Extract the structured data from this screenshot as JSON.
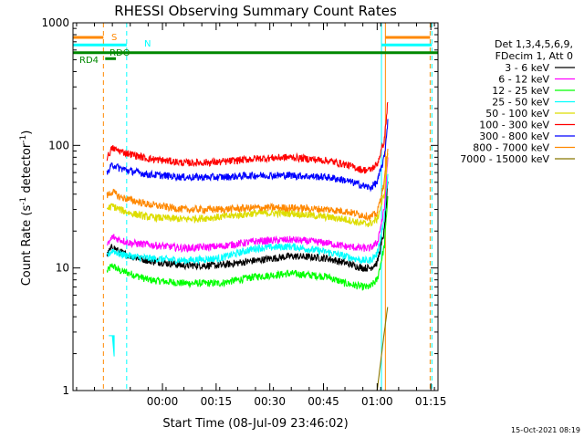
{
  "chart_data": {
    "type": "line",
    "title": "RHESSI Observing Summary Count Rates",
    "xlabel": "Start Time (08-Jul-09 23:46:02)",
    "ylabel": {
      "main": "Count Rate (s",
      "sup1": "-1",
      "mid": " detector",
      "sup2": "-1",
      "end": ")"
    },
    "yscale": "log",
    "ylim": [
      1,
      1000
    ],
    "xlim_minutes": [
      -11,
      91
    ],
    "x_ticks": [
      {
        "value": 14,
        "label": "00:00"
      },
      {
        "value": 29,
        "label": "00:15"
      },
      {
        "value": 44,
        "label": "00:30"
      },
      {
        "value": 59,
        "label": "00:45"
      },
      {
        "value": 74,
        "label": "01:00"
      },
      {
        "value": 89,
        "label": "01:15"
      }
    ],
    "y_ticks": [
      {
        "value": 1,
        "label": "1"
      },
      {
        "value": 10,
        "label": "10"
      },
      {
        "value": 100,
        "label": "100"
      },
      {
        "value": 1000,
        "label": "1000"
      }
    ],
    "legend_placement": "right",
    "legend_header": [
      "Det 1,3,4,5,6,9,",
      "FDecim 1, Att 0"
    ],
    "x": [
      -3,
      -2,
      0,
      2,
      5,
      10,
      20,
      30,
      40,
      50,
      60,
      65,
      70,
      72,
      74,
      76,
      77
    ],
    "series": [
      {
        "name": "3 - 6 keV",
        "color": "#000000",
        "start": -1.5,
        "values": [
          8,
          12,
          15,
          13.5,
          12.5,
          11.5,
          10.5,
          10.5,
          11.5,
          12.5,
          12,
          11,
          10,
          10,
          11,
          20,
          50
        ]
      },
      {
        "name": "6 - 12 keV",
        "color": "#ff00ff",
        "start": -1.5,
        "values": [
          11,
          14,
          18,
          17,
          16,
          15.5,
          14.5,
          15,
          16.5,
          17,
          16,
          15,
          14.5,
          14.5,
          16,
          30,
          80
        ]
      },
      {
        "name": "12 - 25 keV",
        "color": "#00ff00",
        "start": -1.5,
        "values": [
          6,
          9,
          10.5,
          9.5,
          9,
          8,
          7.5,
          7.5,
          8.5,
          9,
          8.5,
          7.5,
          7,
          7,
          8,
          15,
          40
        ]
      },
      {
        "name": "25 - 50 keV",
        "color": "#00ffff",
        "start": -1.5,
        "values": [
          9,
          12,
          14,
          13,
          12.5,
          12,
          11.5,
          12,
          14.5,
          15,
          13.5,
          12.5,
          11.5,
          11.5,
          13,
          25,
          60
        ]
      },
      {
        "name": "50 - 100 keV",
        "color": "#dddd00",
        "start": -1.5,
        "values": [
          22,
          30,
          32,
          30,
          28,
          26,
          25,
          26,
          28,
          28,
          26,
          25,
          23,
          23,
          25,
          40,
          90
        ]
      },
      {
        "name": "100 - 300 keV",
        "color": "#ff0000",
        "start": -1.5,
        "values": [
          28,
          75,
          95,
          90,
          85,
          78,
          72,
          73,
          78,
          80,
          75,
          70,
          63,
          63,
          70,
          110,
          230
        ]
      },
      {
        "name": "300 - 800 keV",
        "color": "#0000ff",
        "start": -1.5,
        "values": [
          30,
          55,
          70,
          65,
          62,
          58,
          55,
          55,
          57,
          57,
          55,
          52,
          47,
          45,
          50,
          80,
          160
        ]
      },
      {
        "name": "800 - 7000 keV",
        "color": "#ff8800",
        "start": -1.5,
        "values": [
          25,
          38,
          42,
          38,
          36,
          33,
          30,
          30,
          31,
          31,
          30,
          29,
          27,
          26,
          28,
          50,
          100
        ]
      },
      {
        "name": "7000 - 15000 keV",
        "color": "#887700",
        "start": 72,
        "values": [
          null,
          null,
          null,
          null,
          null,
          null,
          null,
          null,
          null,
          null,
          null,
          null,
          null,
          1,
          1,
          3,
          5
        ]
      }
    ],
    "attenuator_trace": {
      "color": "#00ffff",
      "x": [
        -1,
        0,
        0.5,
        0.5,
        -1
      ],
      "values": [
        2.8,
        2.8,
        1.9,
        2.8,
        2.8
      ]
    },
    "vertical_markers": [
      {
        "x": -11,
        "color": "#00ffff",
        "style": "solid"
      },
      {
        "x": -2.5,
        "color": "#ff8800",
        "style": "dashed"
      },
      {
        "x": 4,
        "color": "#00ffff",
        "style": "dashed"
      },
      {
        "x": 75.2,
        "color": "#00ffff",
        "style": "solid"
      },
      {
        "x": 76.3,
        "color": "#ff8800",
        "style": "solid"
      },
      {
        "x": 88.8,
        "color": "#ff8800",
        "style": "dashed"
      },
      {
        "x": 89.3,
        "color": "#00ffff",
        "style": "dashed"
      }
    ],
    "flags": [
      {
        "label": "S",
        "color": "#ff8800",
        "ranges": [
          [
            -11,
            -2.5
          ],
          [
            76.3,
            88.8
          ]
        ],
        "level": 760
      },
      {
        "label": "N",
        "color": "#00ffff",
        "ranges": [
          [
            -11,
            4
          ],
          [
            75.2,
            89.3
          ]
        ],
        "level": 660
      },
      {
        "label": "RDO",
        "color": "#008800",
        "ranges": [
          [
            -11,
            91
          ]
        ],
        "level": 570
      },
      {
        "label": "RD4",
        "color": "#008800",
        "ranges": [
          [
            -2,
            1
          ]
        ],
        "level": 510
      }
    ],
    "timestamp": "15-Oct-2021 08:19"
  }
}
